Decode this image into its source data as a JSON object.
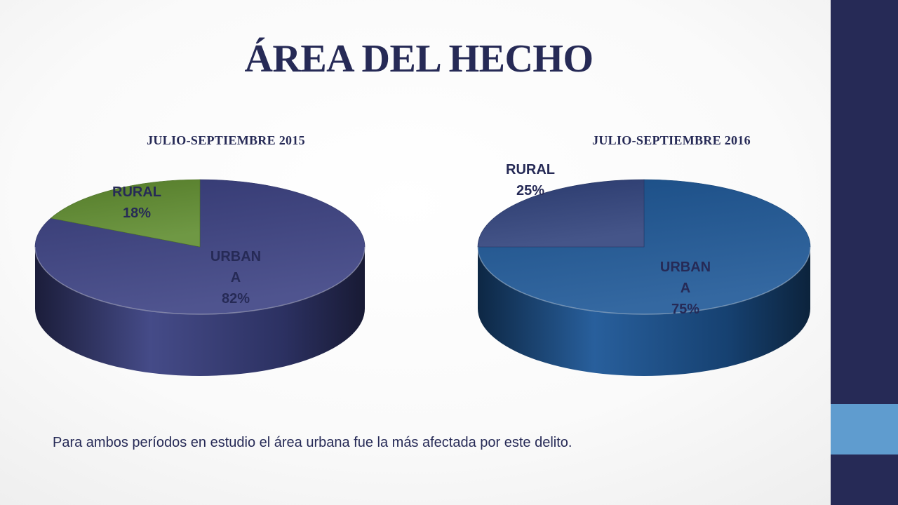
{
  "slide": {
    "title": "ÁREA DEL HECHO",
    "footnote": "Para ambos períodos en estudio el área urbana fue la más afectada por este delito."
  },
  "colors": {
    "title": "#262a56",
    "side_bar": "#262a56",
    "side_accent": "#5f9ccf"
  },
  "chart_data": [
    {
      "type": "pie",
      "style": "3d",
      "title": "JULIO-SEPTIEMBRE 2015",
      "categories": [
        "URBANA",
        "RURAL"
      ],
      "values": [
        82,
        18
      ],
      "data_labels": [
        {
          "lines": [
            "URBAN",
            "A",
            "82%"
          ],
          "color": "#262a56"
        },
        {
          "lines": [
            "RURAL",
            "18%"
          ],
          "color": "#262a56"
        }
      ],
      "colors": [
        "#3b4182",
        "#5f8c2f"
      ],
      "legend": "none"
    },
    {
      "type": "pie",
      "style": "3d",
      "title": "JULIO-SEPTIEMBRE 2016",
      "categories": [
        "URBANA",
        "RURAL"
      ],
      "values": [
        75,
        25
      ],
      "data_labels": [
        {
          "lines": [
            "URBAN",
            "A",
            "75%"
          ],
          "color": "#262a56"
        },
        {
          "lines": [
            "RURAL",
            "25%"
          ],
          "color": "#262a56"
        }
      ],
      "colors": [
        "#1d5797",
        "#30427c"
      ],
      "legend": "none"
    }
  ]
}
